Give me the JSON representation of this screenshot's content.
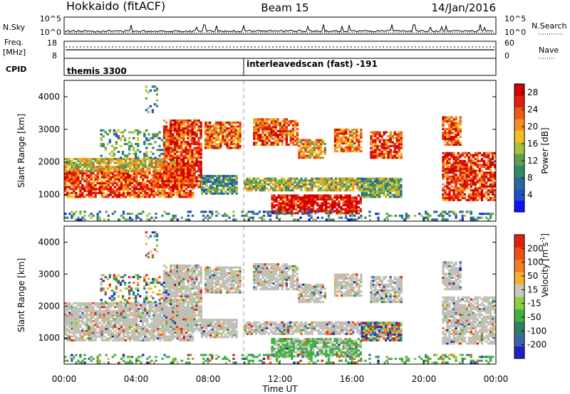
{
  "header": {
    "station": "Hokkaido (fitACF)",
    "beam": "Beam 15",
    "date": "14/Jan/2016"
  },
  "strips": {
    "nsky_label": "N.Sky",
    "nsky_ticks": [
      "10^5",
      "10^0"
    ],
    "nsearch_label": "N.Search",
    "freq_label": "Freq.",
    "freq_unit": "[MHz]",
    "freq_ticks": [
      "18",
      "8"
    ],
    "nave_label": "Nave",
    "nave_ticks": [
      "60",
      "0"
    ],
    "cpid_label": "CPID",
    "cpid_segments": [
      {
        "name": "themis 3300",
        "start_ut": 0.0,
        "end_ut": 10.0
      },
      {
        "name": "interleavedscan (fast) -191",
        "start_ut": 10.0,
        "end_ut": 24.0
      }
    ]
  },
  "chart_data": [
    {
      "type": "heatmap",
      "panel": "power",
      "ylabel": "Slant Range [km]",
      "yticks": [
        "1000",
        "2000",
        "3000",
        "4000"
      ],
      "ylim": [
        180,
        4500
      ],
      "xlim": [
        0,
        24
      ],
      "colorbar": {
        "label": "Power [dB]",
        "range": [
          0,
          30
        ],
        "ticks": [
          "4",
          "8",
          "12",
          "16",
          "20",
          "24",
          "28"
        ],
        "colors": [
          "#1010ff",
          "#2050c8",
          "#2a6a9a",
          "#2f8a66",
          "#5fa050",
          "#a8c040",
          "#f0c020",
          "#f89020",
          "#f05818",
          "#e02010",
          "#d00000"
        ]
      }
    },
    {
      "type": "heatmap",
      "panel": "velocity",
      "ylabel": "Slant Range [km]",
      "yticks": [
        "1000",
        "2000",
        "3000",
        "4000"
      ],
      "ylim": [
        180,
        4500
      ],
      "xlim": [
        0,
        24
      ],
      "xticks": [
        "00:00",
        "04:00",
        "08:00",
        "12:00",
        "16:00",
        "20:00",
        "00:00"
      ],
      "xlabel": "Time UT",
      "colorbar": {
        "label": "Velocity [m s",
        "label_sup": "-1",
        "label_tail": "]",
        "range": [
          -250,
          250
        ],
        "ticks": [
          "200",
          "100",
          "50",
          "15",
          "-15",
          "-50",
          "-100",
          "-200"
        ],
        "colors": [
          "#2020c0",
          "#3a66a8",
          "#2f8060",
          "#44b044",
          "#88d040",
          "#c8c8c0",
          "#f8b030",
          "#f08020",
          "#f05018",
          "#e02010"
        ]
      },
      "ground_scatter_color": "#c0c0b8"
    }
  ]
}
